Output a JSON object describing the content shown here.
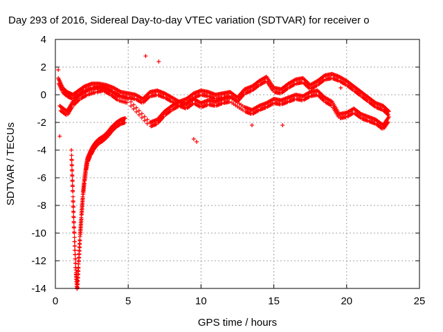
{
  "chart_data": {
    "type": "scatter",
    "title": "Day 293 of 2016, Sidereal Day-to-day VTEC variation (SDTVAR) for receiver o",
    "xlabel": "GPS time / hours",
    "ylabel": "SDTVAR / TECUs",
    "xlim": [
      0,
      25
    ],
    "ylim": [
      -14,
      4
    ],
    "xticks": [
      0,
      5,
      10,
      15,
      20,
      25
    ],
    "yticks": [
      -14,
      -12,
      -10,
      -8,
      -6,
      -4,
      -2,
      0,
      2,
      4
    ],
    "grid": true,
    "marker": "+",
    "color": "#ff0000",
    "series": [
      {
        "name": "main band",
        "x": [
          0.2,
          0.5,
          0.8,
          1.2,
          1.6,
          2.0,
          2.5,
          3.0,
          3.5,
          4.0,
          4.5,
          5.0,
          5.5,
          6.0,
          6.5,
          7.0,
          7.5,
          8.0,
          8.5,
          9.0,
          9.5,
          10.0,
          10.5,
          11.0,
          11.5,
          12.0,
          12.5,
          13.0,
          13.5,
          14.0,
          14.5,
          15.0,
          15.5,
          16.0,
          16.5,
          17.0,
          17.5,
          18.0,
          18.5,
          19.0,
          19.5,
          20.0,
          20.5,
          21.0,
          21.5,
          22.0,
          22.5,
          22.9
        ],
        "y": [
          1.2,
          0.5,
          0.2,
          0.0,
          0.3,
          0.6,
          0.8,
          0.8,
          0.7,
          0.5,
          0.2,
          0.1,
          0.0,
          -0.3,
          0.2,
          0.3,
          0.1,
          -0.2,
          -0.5,
          -0.3,
          0.1,
          0.3,
          0.2,
          0.0,
          0.1,
          0.2,
          -0.2,
          0.4,
          0.6,
          1.0,
          1.3,
          0.5,
          0.4,
          0.8,
          1.1,
          1.2,
          0.7,
          1.0,
          1.4,
          1.5,
          1.3,
          1.0,
          0.6,
          0.2,
          -0.2,
          -0.6,
          -0.8,
          -1.2
        ]
      },
      {
        "name": "lower band",
        "x": [
          0.3,
          0.8,
          1.2,
          1.7,
          2.2,
          2.8,
          3.3,
          3.8,
          4.3,
          5.0,
          6.5,
          7.0,
          7.5,
          8.0,
          8.5,
          9.0,
          9.5,
          10.0,
          10.5,
          11.0,
          11.5,
          12.0,
          13.0,
          13.5,
          14.0,
          14.5,
          15.0,
          15.5,
          16.0,
          16.5,
          17.0,
          17.5,
          18.0,
          18.5,
          19.0,
          19.5,
          20.0,
          20.5,
          21.0,
          21.5,
          22.0,
          22.5,
          22.9
        ],
        "y": [
          -0.8,
          -1.2,
          -0.5,
          0.0,
          0.3,
          0.5,
          0.6,
          0.3,
          -0.1,
          -0.3,
          -2.0,
          -1.8,
          -1.2,
          -0.8,
          -0.5,
          -0.7,
          -0.3,
          -0.6,
          -0.4,
          -0.5,
          -0.3,
          -0.2,
          -0.9,
          -1.1,
          -0.8,
          -0.6,
          -0.3,
          -0.4,
          -0.2,
          0.0,
          -0.1,
          0.2,
          0.3,
          -0.2,
          -0.5,
          -1.4,
          -1.3,
          -1.0,
          -1.4,
          -1.6,
          -1.8,
          -2.2,
          -1.6
        ]
      },
      {
        "name": "descending branch",
        "x": [
          1.1,
          1.2,
          1.3,
          1.4,
          1.5,
          1.6,
          1.7,
          1.8,
          1.9,
          2.0,
          2.1,
          2.2,
          2.4,
          2.6,
          2.8,
          3.0,
          3.3,
          3.6,
          3.9,
          4.2,
          4.5,
          4.8
        ],
        "y": [
          -4.0,
          -7.0,
          -10.0,
          -12.5,
          -13.9,
          -12.0,
          -10.0,
          -8.5,
          -7.0,
          -6.0,
          -5.2,
          -4.6,
          -4.1,
          -3.7,
          -3.4,
          -3.2,
          -3.0,
          -2.7,
          -2.3,
          -2.0,
          -1.8,
          -1.7
        ]
      },
      {
        "name": "outliers",
        "x": [
          6.2,
          9.5,
          9.7,
          0.3,
          0.2,
          7.1,
          13.5,
          15.6,
          19.6
        ],
        "y": [
          2.8,
          -3.2,
          -3.4,
          -3.0,
          1.8,
          2.4,
          -2.2,
          -2.2,
          0.5
        ]
      }
    ]
  }
}
